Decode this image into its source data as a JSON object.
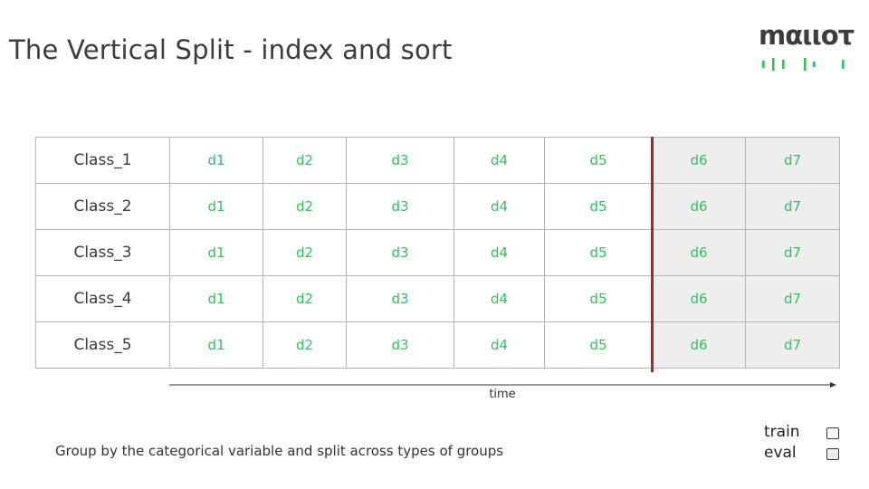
{
  "title": "The Vertical Split - index and sort",
  "logo": {
    "text": "mαιιοτ",
    "icon": "logo-bars-icon",
    "accent": "#30c25a"
  },
  "table": {
    "rows": [
      {
        "label": "Class_1",
        "cells": [
          "d1",
          "d2",
          "d3",
          "d4",
          "d5",
          "d6",
          "d7"
        ]
      },
      {
        "label": "Class_2",
        "cells": [
          "d1",
          "d2",
          "d3",
          "d4",
          "d5",
          "d6",
          "d7"
        ]
      },
      {
        "label": "Class_3",
        "cells": [
          "d1",
          "d2",
          "d3",
          "d4",
          "d5",
          "d6",
          "d7"
        ]
      },
      {
        "label": "Class_4",
        "cells": [
          "d1",
          "d2",
          "d3",
          "d4",
          "d5",
          "d6",
          "d7"
        ]
      },
      {
        "label": "Class_5",
        "cells": [
          "d1",
          "d2",
          "d3",
          "d4",
          "d5",
          "d6",
          "d7"
        ]
      }
    ],
    "train_columns": 5,
    "eval_columns": 2
  },
  "axis": {
    "label": "time"
  },
  "caption": "Group by the categorical variable and split across types of groups",
  "legend": [
    {
      "label": "train",
      "color": "#ffffff"
    },
    {
      "label": "eval",
      "color": "#eeeeee"
    }
  ],
  "colors": {
    "cell_text": "#30c25a",
    "split_line": "#a52727",
    "eval_fill": "#eeeeee",
    "grid_line": "#b5b5b5"
  }
}
